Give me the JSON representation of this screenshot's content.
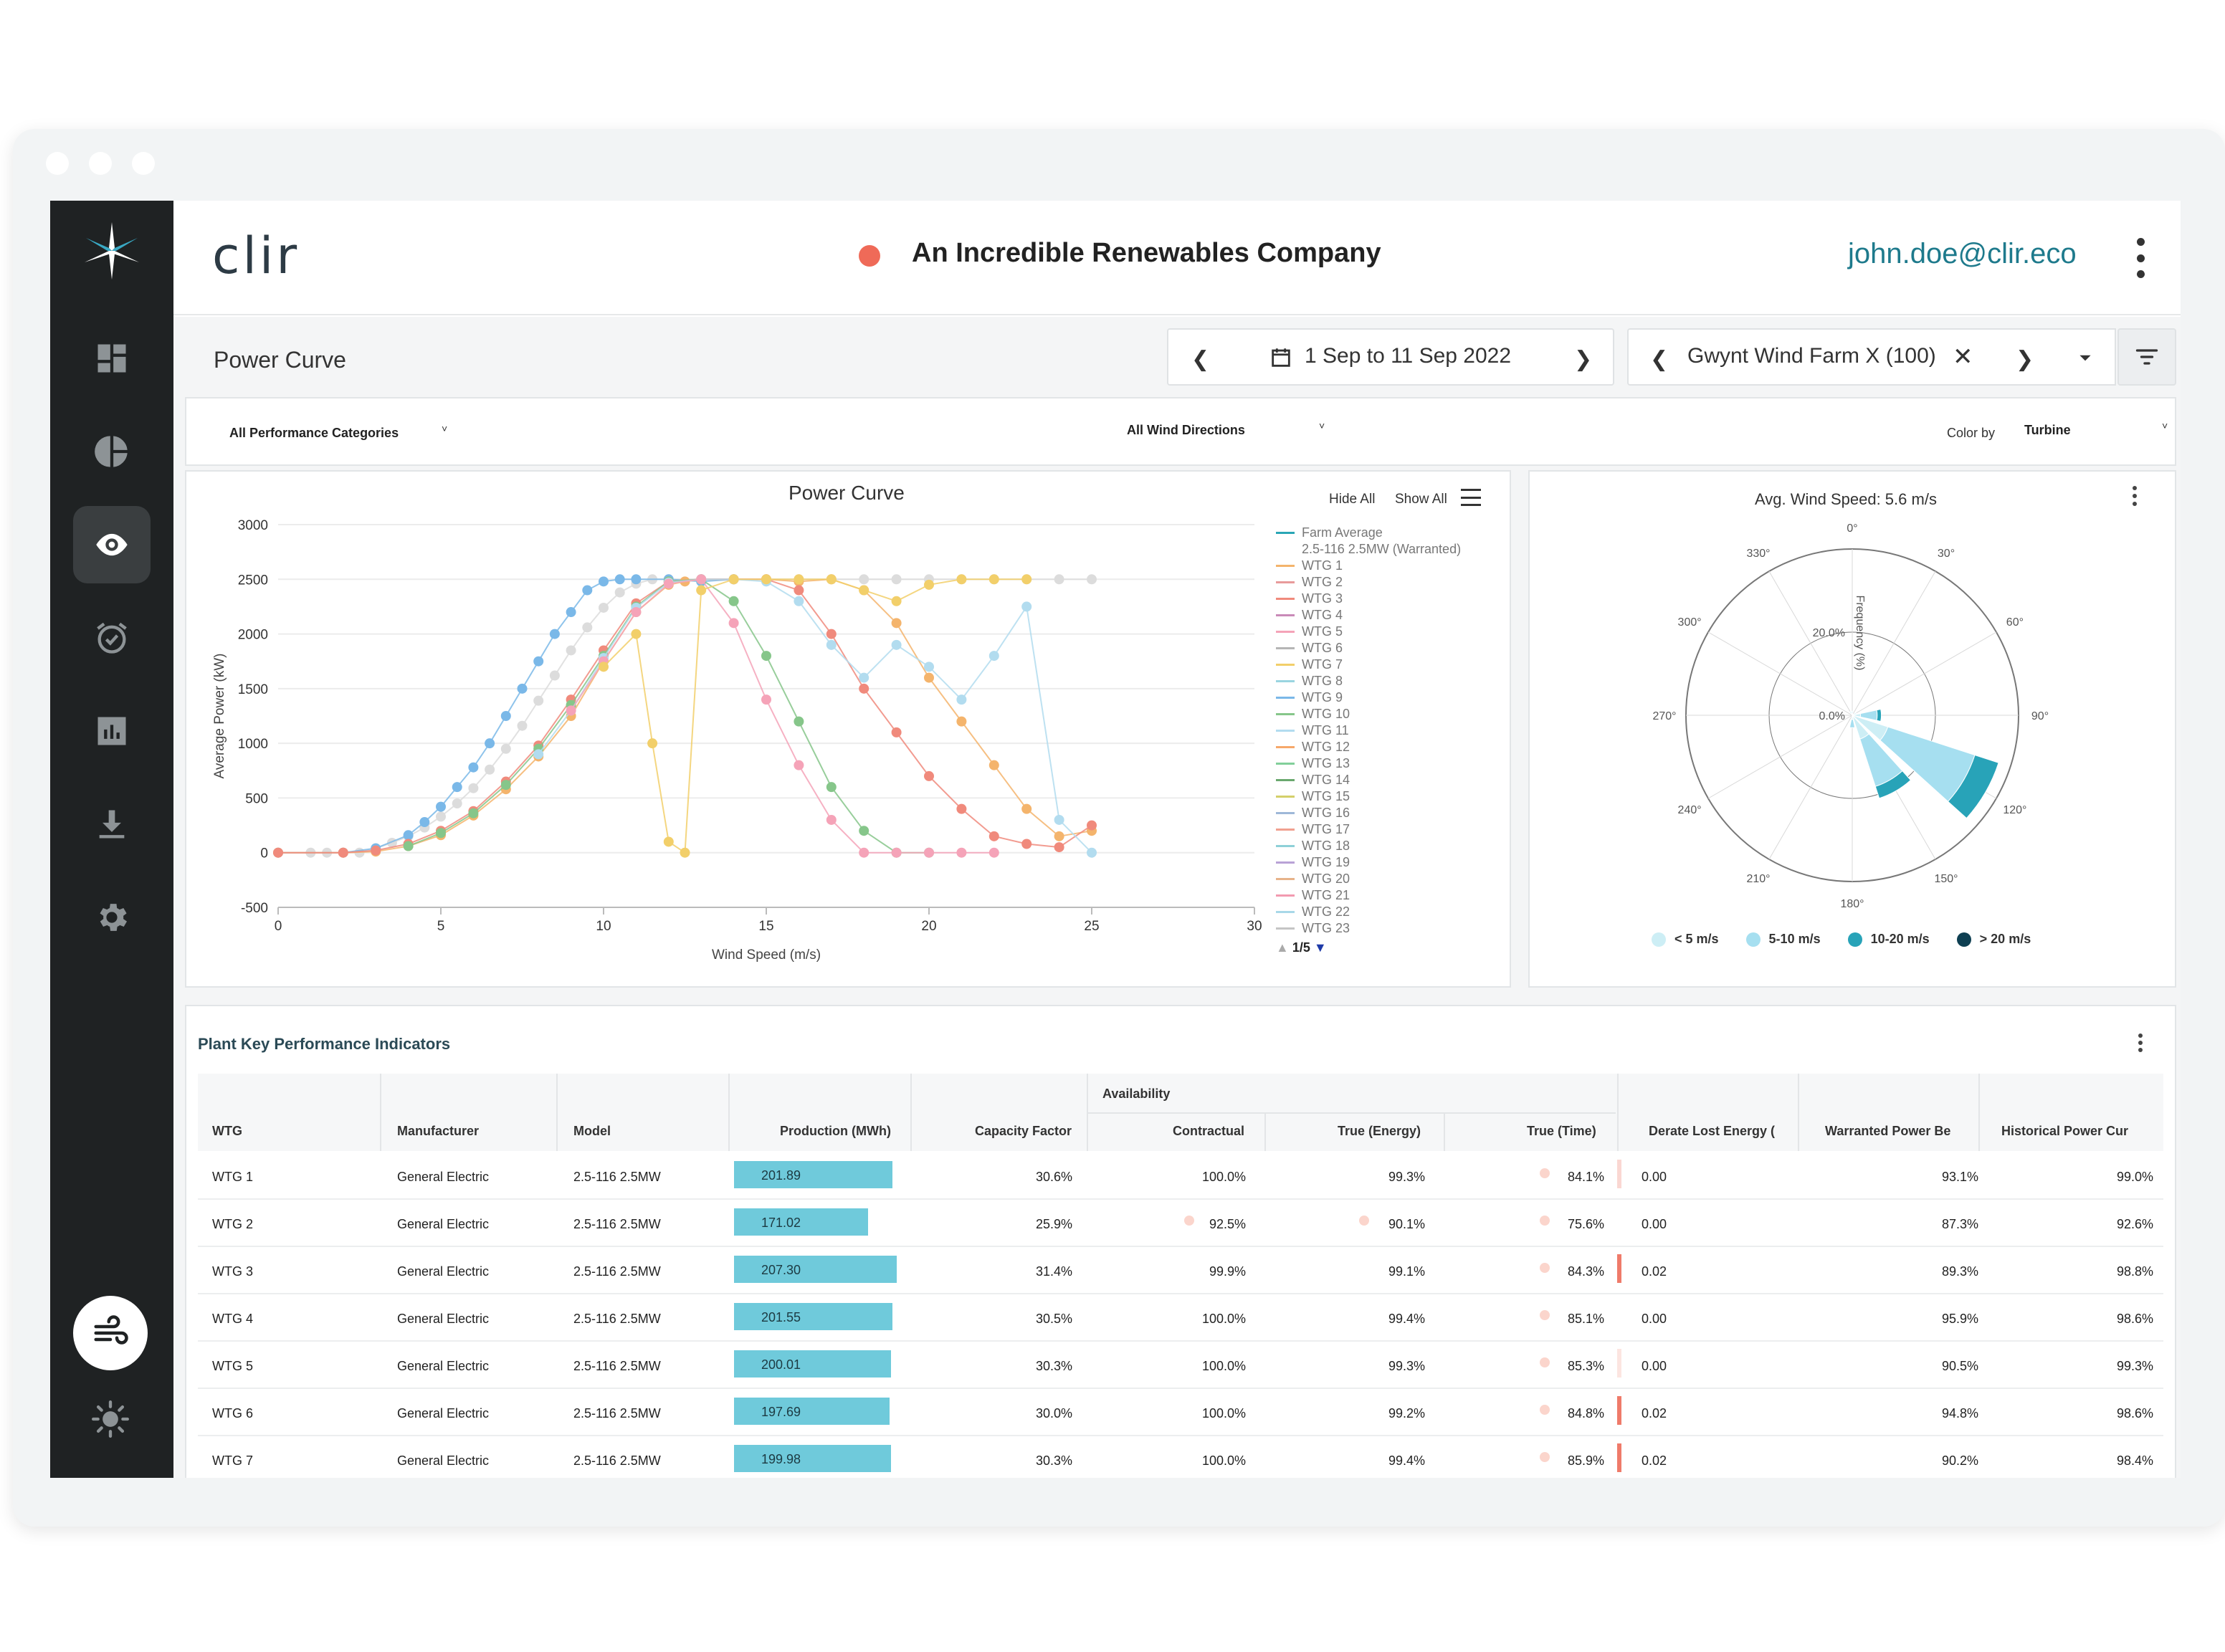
{
  "window": {
    "dot_color": "#ffffff"
  },
  "sidebar": {
    "items": [
      {
        "icon": "dashboard-icon"
      },
      {
        "icon": "pie-chart-icon"
      },
      {
        "icon": "eye-icon",
        "active": true
      },
      {
        "icon": "alarm-clock-icon"
      },
      {
        "icon": "bar-chart-icon"
      },
      {
        "icon": "download-icon"
      },
      {
        "icon": "gear-icon"
      }
    ],
    "bottom": [
      {
        "icon": "wind-icon"
      },
      {
        "icon": "sun-icon"
      }
    ]
  },
  "header": {
    "brand": "clir",
    "company": "An Incredible Renewables Company",
    "status_color": "#ef6a58",
    "user": "john.doe@clir.eco"
  },
  "toolbar": {
    "page_title": "Power Curve",
    "date_range": "1 Sep to 11 Sep 2022",
    "farm": "Gwynt Wind Farm X (100)"
  },
  "filters": {
    "performance": "All Performance Categories",
    "directions": "All Wind Directions",
    "color_by_label": "Color by",
    "color_by_value": "Turbine"
  },
  "power_curve": {
    "hide_all": "Hide All",
    "show_all": "Show All",
    "legend_pager": "1/5",
    "legend": [
      {
        "name": "Farm Average",
        "color": "#2aa6b5"
      },
      {
        "name": "2.5-116 2.5MW (Warranted)",
        "color": "#ffffff"
      },
      {
        "name": "WTG 1",
        "color": "#f4b46c"
      },
      {
        "name": "WTG 2",
        "color": "#e89a9a"
      },
      {
        "name": "WTG 3",
        "color": "#f08a7c"
      },
      {
        "name": "WTG 4",
        "color": "#c98ab8"
      },
      {
        "name": "WTG 5",
        "color": "#f5a3b8"
      },
      {
        "name": "WTG 6",
        "color": "#b5b5b5"
      },
      {
        "name": "WTG 7",
        "color": "#f2cf6a"
      },
      {
        "name": "WTG 8",
        "color": "#9ad5e0"
      },
      {
        "name": "WTG 9",
        "color": "#7ab8e8"
      },
      {
        "name": "WTG 10",
        "color": "#86c68a"
      },
      {
        "name": "WTG 11",
        "color": "#b2dcef"
      },
      {
        "name": "WTG 12",
        "color": "#f6a86a"
      },
      {
        "name": "WTG 13",
        "color": "#82cf9a"
      },
      {
        "name": "WTG 14",
        "color": "#6aa86e"
      },
      {
        "name": "WTG 15",
        "color": "#d4cf6a"
      },
      {
        "name": "WTG 16",
        "color": "#9eb8d8"
      },
      {
        "name": "WTG 17",
        "color": "#f0a090"
      },
      {
        "name": "WTG 18",
        "color": "#8ed0d8"
      },
      {
        "name": "WTG 19",
        "color": "#b9a2d6"
      },
      {
        "name": "WTG 20",
        "color": "#e7b38a"
      },
      {
        "name": "WTG 21",
        "color": "#f29ab0"
      },
      {
        "name": "WTG 22",
        "color": "#a8d8e8"
      },
      {
        "name": "WTG 23",
        "color": "#c5c5c5"
      }
    ]
  },
  "chart_data": [
    {
      "type": "scatter",
      "title": "Power Curve",
      "xlabel": "Wind Speed (m/s)",
      "ylabel": "Average Power (kW)",
      "xlim": [
        0,
        30
      ],
      "ylim": [
        -500,
        3000
      ],
      "x_ticks": [
        0,
        5,
        10,
        15,
        20,
        25,
        30
      ],
      "y_ticks": [
        -500,
        0,
        500,
        1000,
        1500,
        2000,
        2500,
        3000
      ],
      "grid": true,
      "legend_position": "right",
      "series": [
        {
          "name": "2.5-116 2.5MW (Warranted)",
          "color": "#dcdcdc",
          "x": [
            0,
            1,
            1.5,
            2,
            2.5,
            3,
            3.5,
            4,
            4.5,
            5,
            5.5,
            6,
            6.5,
            7,
            7.5,
            8,
            8.5,
            9,
            9.5,
            10,
            10.5,
            11,
            11.5,
            12,
            13,
            14,
            15,
            16,
            17,
            18,
            19,
            20,
            21,
            22,
            23,
            24,
            25
          ],
          "y": [
            0,
            0,
            0,
            0,
            0,
            40,
            90,
            150,
            230,
            330,
            450,
            590,
            760,
            950,
            1160,
            1390,
            1620,
            1850,
            2060,
            2240,
            2380,
            2460,
            2500,
            2500,
            2500,
            2500,
            2500,
            2500,
            2500,
            2500,
            2500,
            2500,
            2500,
            2500,
            2500,
            2500,
            2500
          ]
        },
        {
          "name": "WTG 9",
          "color": "#7ab8e8",
          "x": [
            0,
            2,
            3,
            4,
            4.5,
            5,
            5.5,
            6,
            6.5,
            7,
            7.5,
            8,
            8.5,
            9,
            9.5,
            10,
            10.5,
            11,
            12,
            13,
            14
          ],
          "y": [
            0,
            0,
            40,
            160,
            280,
            420,
            600,
            780,
            1000,
            1250,
            1500,
            1750,
            2000,
            2200,
            2400,
            2480,
            2500,
            2500,
            2500,
            2480,
            2500
          ]
        },
        {
          "name": "WTG 1",
          "color": "#f4b46c",
          "x": [
            0,
            2,
            3,
            4,
            5,
            6,
            7,
            8,
            9,
            10,
            11,
            12,
            12.5,
            13,
            14,
            15,
            16,
            17,
            18,
            19,
            20,
            21,
            22,
            23,
            24,
            25
          ],
          "y": [
            0,
            0,
            10,
            60,
            160,
            340,
            580,
            880,
            1250,
            1750,
            2200,
            2450,
            2480,
            2500,
            2500,
            2500,
            2480,
            2500,
            2400,
            2100,
            1600,
            1200,
            800,
            400,
            150,
            200
          ]
        },
        {
          "name": "WTG 3",
          "color": "#f08a7c",
          "x": [
            0,
            2,
            3,
            4,
            5,
            6,
            7,
            8,
            9,
            10,
            11,
            12,
            13,
            14,
            15,
            16,
            17,
            18,
            19,
            20,
            21,
            22,
            23,
            24,
            25
          ],
          "y": [
            0,
            0,
            20,
            80,
            200,
            380,
            650,
            980,
            1400,
            1850,
            2280,
            2480,
            2500,
            2500,
            2500,
            2400,
            2000,
            1500,
            1100,
            700,
            400,
            150,
            80,
            50,
            250
          ]
        },
        {
          "name": "WTG 10",
          "color": "#86c68a",
          "x": [
            4,
            5,
            6,
            7,
            8,
            9,
            10,
            11,
            12,
            13,
            14,
            15,
            16,
            17,
            18,
            19,
            20
          ],
          "y": [
            60,
            180,
            360,
            620,
            950,
            1350,
            1800,
            2250,
            2480,
            2500,
            2300,
            1800,
            1200,
            600,
            200,
            0,
            0
          ]
        },
        {
          "name": "WTG 11",
          "color": "#b2dcef",
          "x": [
            8,
            9,
            10,
            11,
            12,
            13,
            14,
            15,
            16,
            17,
            18,
            19,
            20,
            21,
            22,
            23,
            24,
            25
          ],
          "y": [
            900,
            1300,
            1780,
            2240,
            2470,
            2500,
            2500,
            2480,
            2300,
            1900,
            1600,
            1900,
            1700,
            1400,
            1800,
            2250,
            300,
            0
          ]
        },
        {
          "name": "WTG 5",
          "color": "#f5a3b8",
          "x": [
            9,
            10,
            11,
            12,
            13,
            14,
            15,
            16,
            17,
            18,
            19,
            20,
            21,
            22
          ],
          "y": [
            1300,
            1750,
            2200,
            2460,
            2500,
            2100,
            1400,
            800,
            300,
            0,
            0,
            0,
            0,
            0
          ]
        },
        {
          "name": "WTG 7",
          "color": "#f2cf6a",
          "x": [
            10,
            11,
            11.5,
            12,
            12.5,
            13,
            14,
            15,
            16,
            17,
            18,
            19,
            20,
            21,
            22,
            23
          ],
          "y": [
            1700,
            2000,
            1000,
            100,
            0,
            2400,
            2500,
            2500,
            2500,
            2500,
            2400,
            2300,
            2450,
            2500,
            2500,
            2500
          ]
        }
      ]
    },
    {
      "type": "polar-bar",
      "title": "Avg. Wind Speed: 5.6 m/s",
      "radial_label": "Frequency (%)",
      "radial_ticks": [
        "0.0%",
        "20.0%"
      ],
      "radial_max": 40,
      "angle_ticks": [
        "0°",
        "30°",
        "60°",
        "90°",
        "120°",
        "150°",
        "180°",
        "210°",
        "240°",
        "270°",
        "300°",
        "330°"
      ],
      "legend_position": "bottom",
      "legend": [
        {
          "name": "< 5 m/s",
          "color": "#cdeef5"
        },
        {
          "name": "5-10 m/s",
          "color": "#a6dff0"
        },
        {
          "name": "10-20 m/s",
          "color": "#28a3b8"
        },
        {
          "name": "> 20 m/s",
          "color": "#0e3f52"
        }
      ],
      "directions": [
        {
          "angle": 90,
          "segments": [
            2,
            4,
            1,
            0
          ]
        },
        {
          "angle": 120,
          "segments": [
            9,
            22,
            6,
            0
          ]
        },
        {
          "angle": 150,
          "segments": [
            6,
            12,
            3,
            0
          ]
        },
        {
          "angle": 180,
          "segments": [
            1,
            2,
            0,
            0
          ]
        },
        {
          "angle": 330,
          "segments": [
            1,
            0,
            0,
            0
          ]
        },
        {
          "angle": 0,
          "segments": [
            1,
            0,
            0,
            0
          ]
        },
        {
          "angle": 60,
          "segments": [
            1,
            0,
            0,
            0
          ]
        }
      ]
    }
  ],
  "kpi": {
    "title": "Plant Key Performance Indicators",
    "availability_group": "Availability",
    "headers": [
      "WTG",
      "Manufacturer",
      "Model",
      "Production (MWh)",
      "Capacity Factor",
      "Contractual",
      "True (Energy)",
      "True (Time)",
      "Derate Lost Energy (",
      "Warranted Power Be",
      "Historical Power Cur"
    ],
    "production_max": 210,
    "rows": [
      {
        "wtg": "WTG 1",
        "manufacturer": "General Electric",
        "model": "2.5-116 2.5MW",
        "production": "201.89",
        "production_value": 201.89,
        "capacity": "30.6%",
        "contractual": "100.0%",
        "true_energy": "99.3%",
        "true_time": "84.1%",
        "derate": "0.00",
        "warranted": "93.1%",
        "historical": "99.0%",
        "derate_marker": 0.3
      },
      {
        "wtg": "WTG 2",
        "manufacturer": "General Electric",
        "model": "2.5-116 2.5MW",
        "production": "171.02",
        "production_value": 171.02,
        "capacity": "25.9%",
        "contractual": "92.5%",
        "true_energy": "90.1%",
        "true_time": "75.6%",
        "derate": "0.00",
        "warranted": "87.3%",
        "historical": "92.6%",
        "derate_marker": 0
      },
      {
        "wtg": "WTG 3",
        "manufacturer": "General Electric",
        "model": "2.5-116 2.5MW",
        "production": "207.30",
        "production_value": 207.3,
        "capacity": "31.4%",
        "contractual": "99.9%",
        "true_energy": "99.1%",
        "true_time": "84.3%",
        "derate": "0.02",
        "warranted": "89.3%",
        "historical": "98.8%",
        "derate_marker": 1
      },
      {
        "wtg": "WTG 4",
        "manufacturer": "General Electric",
        "model": "2.5-116 2.5MW",
        "production": "201.55",
        "production_value": 201.55,
        "capacity": "30.5%",
        "contractual": "100.0%",
        "true_energy": "99.4%",
        "true_time": "85.1%",
        "derate": "0.00",
        "warranted": "95.9%",
        "historical": "98.6%",
        "derate_marker": 0
      },
      {
        "wtg": "WTG 5",
        "manufacturer": "General Electric",
        "model": "2.5-116 2.5MW",
        "production": "200.01",
        "production_value": 200.01,
        "capacity": "30.3%",
        "contractual": "100.0%",
        "true_energy": "99.3%",
        "true_time": "85.3%",
        "derate": "0.00",
        "warranted": "90.5%",
        "historical": "99.3%",
        "derate_marker": 0.2
      },
      {
        "wtg": "WTG 6",
        "manufacturer": "General Electric",
        "model": "2.5-116 2.5MW",
        "production": "197.69",
        "production_value": 197.69,
        "capacity": "30.0%",
        "contractual": "100.0%",
        "true_energy": "99.2%",
        "true_time": "84.8%",
        "derate": "0.02",
        "warranted": "94.8%",
        "historical": "98.6%",
        "derate_marker": 1
      },
      {
        "wtg": "WTG 7",
        "manufacturer": "General Electric",
        "model": "2.5-116 2.5MW",
        "production": "199.98",
        "production_value": 199.98,
        "capacity": "30.3%",
        "contractual": "100.0%",
        "true_energy": "99.4%",
        "true_time": "85.9%",
        "derate": "0.02",
        "warranted": "90.2%",
        "historical": "98.4%",
        "derate_marker": 1
      }
    ]
  }
}
